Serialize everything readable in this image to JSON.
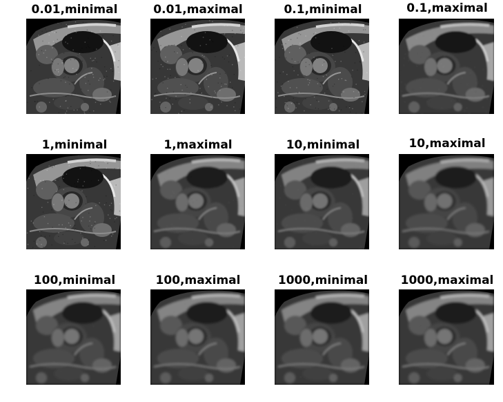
{
  "figure": {
    "panels": [
      {
        "title": "0.01,minimal",
        "scan_label": "cardiac MRI short-axis slice"
      },
      {
        "title": "0.01,maximal",
        "scan_label": "cardiac MRI short-axis slice"
      },
      {
        "title": "0.1,minimal",
        "scan_label": "cardiac MRI short-axis slice"
      },
      {
        "title": "0.1,maximal",
        "scan_label": "cardiac MRI short-axis slice"
      },
      {
        "title": "1,minimal",
        "scan_label": "cardiac MRI short-axis slice"
      },
      {
        "title": "1,maximal",
        "scan_label": "cardiac MRI short-axis slice"
      },
      {
        "title": "10,minimal",
        "scan_label": "cardiac MRI short-axis slice"
      },
      {
        "title": "10,maximal",
        "scan_label": "cardiac MRI short-axis slice"
      },
      {
        "title": "100,minimal",
        "scan_label": "cardiac MRI short-axis slice"
      },
      {
        "title": "100,maximal",
        "scan_label": "cardiac MRI short-axis slice"
      },
      {
        "title": "1000,minimal",
        "scan_label": "cardiac MRI short-axis slice"
      },
      {
        "title": "1000,maximal",
        "scan_label": "cardiac MRI short-axis slice"
      }
    ]
  }
}
